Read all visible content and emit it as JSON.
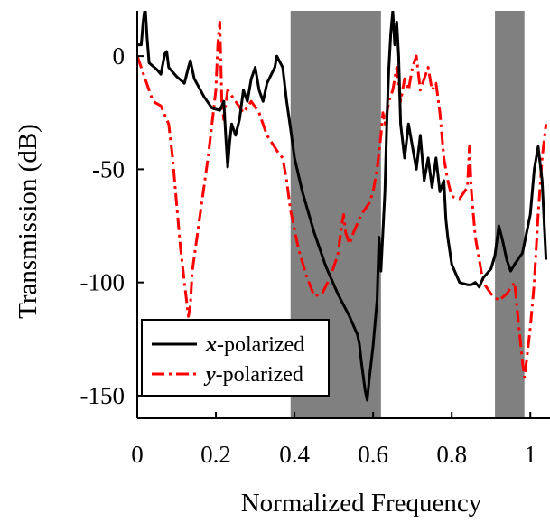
{
  "chart_data": {
    "type": "line",
    "title": "",
    "xlabel": "Normalized Frequency",
    "ylabel": "Transmission (dB)",
    "xlim": [
      0,
      1.05
    ],
    "ylim": [
      -160,
      20
    ],
    "xticks": [
      0,
      0.2,
      0.4,
      0.6,
      0.8,
      1
    ],
    "xtick_labels": [
      "0",
      "0.2",
      "0.4",
      "0.6",
      "0.8",
      "1"
    ],
    "yticks": [
      0,
      -50,
      -100,
      -150
    ],
    "ytick_labels": [
      "0",
      "-50",
      "-100",
      "-150"
    ],
    "grid": false,
    "legend_position": "bottom-left",
    "band_gaps": [
      [
        0.39,
        0.62
      ],
      [
        0.91,
        0.985
      ]
    ],
    "band_gap_color": "#808080",
    "series": [
      {
        "name": "-polarized",
        "symbol": "x",
        "color": "#000000",
        "style": "solid",
        "points": [
          [
            0,
            5
          ],
          [
            0.01,
            5
          ],
          [
            0.015,
            15
          ],
          [
            0.02,
            22
          ],
          [
            0.025,
            8
          ],
          [
            0.03,
            -3
          ],
          [
            0.05,
            -6
          ],
          [
            0.06,
            -8
          ],
          [
            0.07,
            1
          ],
          [
            0.075,
            2
          ],
          [
            0.08,
            -5
          ],
          [
            0.1,
            -9
          ],
          [
            0.12,
            -12
          ],
          [
            0.13,
            -5
          ],
          [
            0.135,
            -2
          ],
          [
            0.145,
            -10
          ],
          [
            0.17,
            -18
          ],
          [
            0.19,
            -23
          ],
          [
            0.21,
            -24
          ],
          [
            0.22,
            -20
          ],
          [
            0.225,
            -35
          ],
          [
            0.23,
            -49
          ],
          [
            0.235,
            -38
          ],
          [
            0.24,
            -30
          ],
          [
            0.25,
            -35
          ],
          [
            0.26,
            -28
          ],
          [
            0.27,
            -15
          ],
          [
            0.28,
            -20
          ],
          [
            0.29,
            -10
          ],
          [
            0.3,
            -5
          ],
          [
            0.31,
            -15
          ],
          [
            0.32,
            -20
          ],
          [
            0.33,
            -12
          ],
          [
            0.35,
            -5
          ],
          [
            0.355,
            0
          ],
          [
            0.37,
            -5
          ],
          [
            0.38,
            -20
          ],
          [
            0.39,
            -32
          ],
          [
            0.4,
            -45
          ],
          [
            0.42,
            -60
          ],
          [
            0.45,
            -78
          ],
          [
            0.48,
            -93
          ],
          [
            0.51,
            -105
          ],
          [
            0.54,
            -115
          ],
          [
            0.56,
            -123
          ],
          [
            0.565,
            -127
          ],
          [
            0.57,
            -135
          ],
          [
            0.58,
            -148
          ],
          [
            0.585,
            -152
          ],
          [
            0.59,
            -143
          ],
          [
            0.6,
            -128
          ],
          [
            0.61,
            -108
          ],
          [
            0.615,
            -80
          ],
          [
            0.62,
            -95
          ],
          [
            0.63,
            -60
          ],
          [
            0.635,
            -28
          ],
          [
            0.64,
            -5
          ],
          [
            0.645,
            10
          ],
          [
            0.65,
            20
          ],
          [
            0.655,
            5
          ],
          [
            0.66,
            15
          ],
          [
            0.665,
            0
          ],
          [
            0.67,
            -30
          ],
          [
            0.68,
            -45
          ],
          [
            0.69,
            -30
          ],
          [
            0.7,
            -40
          ],
          [
            0.71,
            -50
          ],
          [
            0.72,
            -35
          ],
          [
            0.73,
            -55
          ],
          [
            0.74,
            -45
          ],
          [
            0.75,
            -58
          ],
          [
            0.76,
            -45
          ],
          [
            0.77,
            -60
          ],
          [
            0.78,
            -55
          ],
          [
            0.785,
            -72
          ],
          [
            0.79,
            -80
          ],
          [
            0.8,
            -92
          ],
          [
            0.82,
            -100
          ],
          [
            0.84,
            -101
          ],
          [
            0.85,
            -101
          ],
          [
            0.86,
            -100
          ],
          [
            0.87,
            -102
          ],
          [
            0.88,
            -98
          ],
          [
            0.9,
            -94
          ],
          [
            0.91,
            -88
          ],
          [
            0.92,
            -75
          ],
          [
            0.93,
            -82
          ],
          [
            0.94,
            -90
          ],
          [
            0.95,
            -95
          ],
          [
            0.96,
            -92
          ],
          [
            0.98,
            -87
          ],
          [
            1.0,
            -70
          ],
          [
            1.01,
            -50
          ],
          [
            1.02,
            -40
          ],
          [
            1.03,
            -55
          ],
          [
            1.04,
            -90
          ]
        ]
      },
      {
        "name": "-polarized",
        "symbol": "y",
        "color": "#ff0000",
        "style": "dashdot",
        "points": [
          [
            0,
            0
          ],
          [
            0.02,
            -10
          ],
          [
            0.04,
            -20
          ],
          [
            0.06,
            -22
          ],
          [
            0.08,
            -30
          ],
          [
            0.09,
            -45
          ],
          [
            0.1,
            -65
          ],
          [
            0.11,
            -85
          ],
          [
            0.12,
            -100
          ],
          [
            0.13,
            -115
          ],
          [
            0.135,
            -110
          ],
          [
            0.14,
            -95
          ],
          [
            0.16,
            -70
          ],
          [
            0.18,
            -45
          ],
          [
            0.19,
            -30
          ],
          [
            0.2,
            -15
          ],
          [
            0.205,
            5
          ],
          [
            0.21,
            15
          ],
          [
            0.215,
            -20
          ],
          [
            0.22,
            -28
          ],
          [
            0.23,
            -15
          ],
          [
            0.25,
            -20
          ],
          [
            0.27,
            -25
          ],
          [
            0.29,
            -20
          ],
          [
            0.31,
            -25
          ],
          [
            0.33,
            -35
          ],
          [
            0.36,
            -43
          ],
          [
            0.37,
            -45
          ],
          [
            0.38,
            -55
          ],
          [
            0.39,
            -68
          ],
          [
            0.41,
            -85
          ],
          [
            0.43,
            -97
          ],
          [
            0.45,
            -106
          ],
          [
            0.47,
            -105
          ],
          [
            0.49,
            -98
          ],
          [
            0.51,
            -88
          ],
          [
            0.52,
            -75
          ],
          [
            0.525,
            -70
          ],
          [
            0.53,
            -78
          ],
          [
            0.54,
            -83
          ],
          [
            0.55,
            -78
          ],
          [
            0.57,
            -70
          ],
          [
            0.59,
            -65
          ],
          [
            0.6,
            -60
          ],
          [
            0.61,
            -50
          ],
          [
            0.62,
            -35
          ],
          [
            0.625,
            -25
          ],
          [
            0.63,
            -30
          ],
          [
            0.64,
            -20
          ],
          [
            0.65,
            -15
          ],
          [
            0.66,
            -5
          ],
          [
            0.67,
            -20
          ],
          [
            0.68,
            -10
          ],
          [
            0.69,
            -15
          ],
          [
            0.7,
            -5
          ],
          [
            0.71,
            0
          ],
          [
            0.72,
            -15
          ],
          [
            0.73,
            -10
          ],
          [
            0.74,
            -5
          ],
          [
            0.75,
            -15
          ],
          [
            0.76,
            -12
          ],
          [
            0.77,
            -25
          ],
          [
            0.78,
            -45
          ],
          [
            0.79,
            -55
          ],
          [
            0.8,
            -62
          ],
          [
            0.82,
            -63
          ],
          [
            0.84,
            -58
          ],
          [
            0.845,
            -40
          ],
          [
            0.85,
            -60
          ],
          [
            0.86,
            -80
          ],
          [
            0.87,
            -90
          ],
          [
            0.88,
            -100
          ],
          [
            0.9,
            -105
          ],
          [
            0.92,
            -108
          ],
          [
            0.94,
            -105
          ],
          [
            0.96,
            -100
          ],
          [
            0.97,
            -118
          ],
          [
            0.98,
            -135
          ],
          [
            0.985,
            -142
          ],
          [
            0.99,
            -135
          ],
          [
            1.0,
            -120
          ],
          [
            1.01,
            -100
          ],
          [
            1.02,
            -70
          ],
          [
            1.03,
            -45
          ],
          [
            1.04,
            -30
          ]
        ]
      }
    ]
  }
}
